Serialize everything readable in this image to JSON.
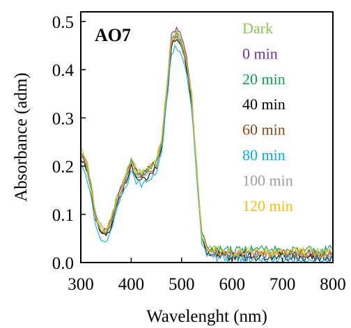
{
  "chart_data": {
    "type": "line",
    "panel_label": "AO7",
    "xlabel": "Wavelenght (nm)",
    "ylabel": "Absorbance (adm)",
    "xlim": [
      300,
      800
    ],
    "ylim": [
      0,
      0.52
    ],
    "xticks": [
      300,
      400,
      500,
      600,
      700,
      800
    ],
    "yticks": [
      0.0,
      0.1,
      0.2,
      0.3,
      0.4,
      0.5
    ],
    "xtick_labels": [
      "300",
      "400",
      "500",
      "600",
      "700",
      "800"
    ],
    "ytick_labels": [
      "0.0",
      "0.1",
      "0.2",
      "0.3",
      "0.4",
      "0.5"
    ],
    "grid": false,
    "legend_position": "top-right",
    "x": [
      300,
      310,
      320,
      330,
      340,
      350,
      360,
      370,
      380,
      390,
      400,
      410,
      420,
      430,
      440,
      450,
      460,
      470,
      480,
      490,
      500,
      510,
      520,
      530,
      540,
      550,
      560,
      570,
      580,
      600,
      650,
      700,
      750,
      800
    ],
    "series": [
      {
        "name": "Dark",
        "color": "#8dc44f",
        "values": [
          0.235,
          0.22,
          0.165,
          0.1,
          0.075,
          0.07,
          0.09,
          0.13,
          0.16,
          0.185,
          0.215,
          0.195,
          0.19,
          0.195,
          0.205,
          0.215,
          0.255,
          0.36,
          0.465,
          0.47,
          0.455,
          0.42,
          0.35,
          0.2,
          0.06,
          0.035,
          0.03,
          0.028,
          0.025,
          0.02,
          0.02,
          0.02,
          0.02,
          0.02
        ]
      },
      {
        "name": "0 min",
        "color": "#7030a0",
        "values": [
          0.23,
          0.215,
          0.16,
          0.095,
          0.07,
          0.065,
          0.085,
          0.125,
          0.155,
          0.18,
          0.21,
          0.19,
          0.185,
          0.19,
          0.2,
          0.21,
          0.25,
          0.355,
          0.47,
          0.49,
          0.465,
          0.425,
          0.345,
          0.195,
          0.055,
          0.03,
          0.025,
          0.023,
          0.02,
          0.018,
          0.018,
          0.018,
          0.018,
          0.018
        ]
      },
      {
        "name": "20 min",
        "color": "#00a651",
        "values": [
          0.228,
          0.212,
          0.158,
          0.093,
          0.068,
          0.063,
          0.083,
          0.123,
          0.153,
          0.178,
          0.208,
          0.188,
          0.183,
          0.188,
          0.198,
          0.208,
          0.248,
          0.35,
          0.46,
          0.475,
          0.455,
          0.415,
          0.34,
          0.192,
          0.058,
          0.032,
          0.027,
          0.026,
          0.024,
          0.025,
          0.026,
          0.026,
          0.027,
          0.028
        ]
      },
      {
        "name": "40 min",
        "color": "#000000",
        "values": [
          0.215,
          0.2,
          0.148,
          0.085,
          0.06,
          0.055,
          0.075,
          0.113,
          0.143,
          0.168,
          0.2,
          0.178,
          0.172,
          0.176,
          0.185,
          0.196,
          0.238,
          0.34,
          0.45,
          0.465,
          0.445,
          0.405,
          0.33,
          0.185,
          0.05,
          0.022,
          0.018,
          0.016,
          0.014,
          0.012,
          0.012,
          0.012,
          0.012,
          0.012
        ]
      },
      {
        "name": "60 min",
        "color": "#8b4513",
        "values": [
          0.22,
          0.205,
          0.152,
          0.088,
          0.063,
          0.058,
          0.078,
          0.117,
          0.147,
          0.172,
          0.205,
          0.183,
          0.178,
          0.182,
          0.19,
          0.2,
          0.24,
          0.345,
          0.455,
          0.468,
          0.45,
          0.41,
          0.335,
          0.188,
          0.052,
          0.026,
          0.022,
          0.02,
          0.018,
          0.016,
          0.016,
          0.016,
          0.016,
          0.016
        ]
      },
      {
        "name": "80 min",
        "color": "#00b0f0",
        "values": [
          0.2,
          0.185,
          0.135,
          0.075,
          0.05,
          0.045,
          0.065,
          0.103,
          0.133,
          0.158,
          0.19,
          0.168,
          0.162,
          0.166,
          0.175,
          0.186,
          0.225,
          0.325,
          0.435,
          0.45,
          0.43,
          0.39,
          0.318,
          0.175,
          0.042,
          0.016,
          0.012,
          0.01,
          0.008,
          0.006,
          0.006,
          0.006,
          0.006,
          0.006
        ]
      },
      {
        "name": "100 min",
        "color": "#9e9e9e",
        "values": [
          0.225,
          0.21,
          0.156,
          0.092,
          0.067,
          0.062,
          0.082,
          0.12,
          0.15,
          0.175,
          0.207,
          0.186,
          0.18,
          0.185,
          0.194,
          0.204,
          0.244,
          0.348,
          0.458,
          0.472,
          0.452,
          0.412,
          0.338,
          0.19,
          0.055,
          0.028,
          0.024,
          0.022,
          0.02,
          0.019,
          0.019,
          0.019,
          0.019,
          0.019
        ]
      },
      {
        "name": "120 min",
        "color": "#ffc000",
        "values": [
          0.23,
          0.215,
          0.16,
          0.096,
          0.07,
          0.066,
          0.086,
          0.124,
          0.154,
          0.18,
          0.21,
          0.19,
          0.184,
          0.19,
          0.2,
          0.21,
          0.25,
          0.352,
          0.462,
          0.478,
          0.458,
          0.418,
          0.342,
          0.193,
          0.056,
          0.03,
          0.026,
          0.024,
          0.022,
          0.021,
          0.021,
          0.021,
          0.021,
          0.021
        ]
      }
    ]
  }
}
